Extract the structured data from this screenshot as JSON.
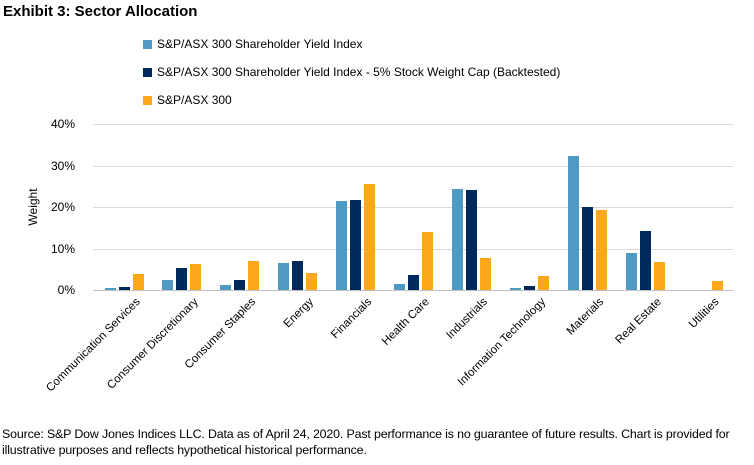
{
  "title": "Exhibit 3: Sector Allocation",
  "chart_data": {
    "type": "bar",
    "title": "Exhibit 3: Sector Allocation",
    "xlabel": "",
    "ylabel": "Weight",
    "ylim": [
      0,
      40
    ],
    "yticks": [
      0,
      10,
      20,
      30,
      40
    ],
    "ytick_labels": [
      "0%",
      "10%",
      "20%",
      "30%",
      "40%"
    ],
    "grid": "horizontal gridlines at each 10%",
    "legend_position": "top",
    "categories": [
      "Communication Services",
      "Consumer Discretionary",
      "Consumer Staples",
      "Energy",
      "Financials",
      "Health Care",
      "Industrials",
      "Information Technology",
      "Materials",
      "Real Estate",
      "Utilities"
    ],
    "series": [
      {
        "name": "S&P/ASX 300 Shareholder Yield Index",
        "color": "#4E9AC2",
        "values": [
          0.4,
          2.5,
          1.3,
          6.5,
          21.5,
          1.5,
          24.4,
          0.5,
          32.3,
          8.8,
          0.0
        ]
      },
      {
        "name": "S&P/ASX 300 Shareholder Yield Index - 5% Stock Weight Cap (Backtested)",
        "color": "#00295B",
        "values": [
          0.7,
          5.4,
          2.3,
          7.1,
          21.8,
          3.7,
          24.0,
          0.9,
          20.1,
          14.2,
          0.0
        ]
      },
      {
        "name": "S&P/ASX 300",
        "color": "#FCA818",
        "values": [
          3.9,
          6.2,
          7.0,
          4.0,
          25.6,
          13.9,
          7.8,
          3.3,
          19.2,
          6.7,
          2.1
        ]
      }
    ]
  },
  "colors": {
    "gridline": "#D9D9D9",
    "axis_line": "#C0C0C0",
    "text": "#000000"
  },
  "footer": {
    "text": "Source: S&P Dow Jones Indices LLC. Data as of April 24, 2020. Past performance is no guarantee of future results. Chart is provided for illustrative purposes and reflects hypothetical historical performance."
  }
}
